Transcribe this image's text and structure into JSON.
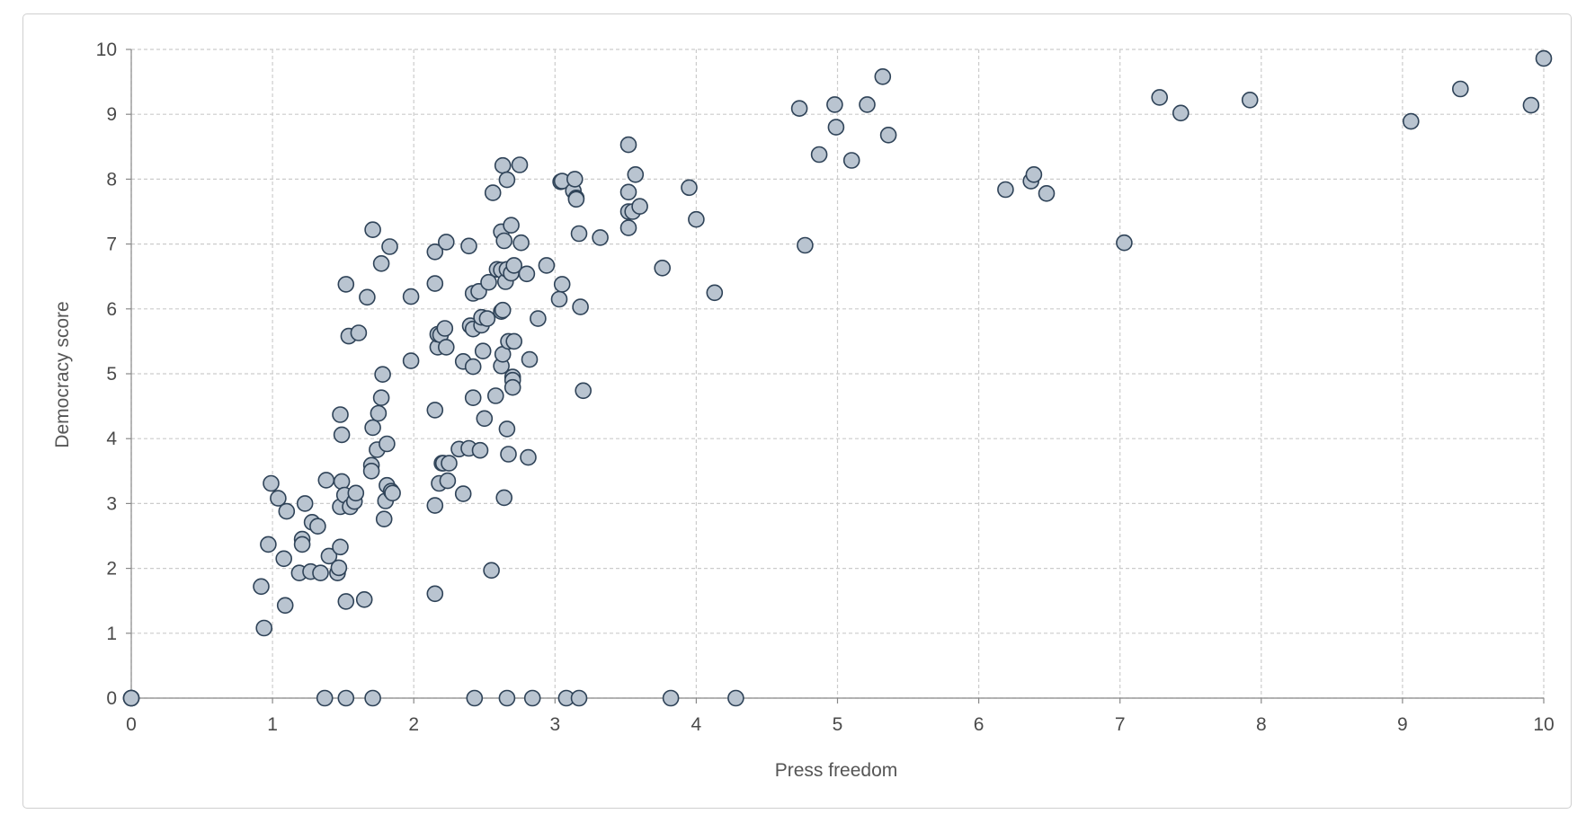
{
  "chart_data": {
    "type": "scatter",
    "title": "",
    "xlabel": "Press freedom",
    "ylabel": "Democracy score",
    "xlim": [
      0,
      10
    ],
    "ylim": [
      0,
      10
    ],
    "x_ticks": [
      "0",
      "1",
      "2",
      "3",
      "4",
      "5",
      "6",
      "7",
      "8",
      "9",
      "10"
    ],
    "y_ticks": [
      "0",
      "1",
      "2",
      "3",
      "4",
      "5",
      "6",
      "7",
      "8",
      "9",
      "10"
    ],
    "grid": true,
    "legend": "none",
    "point_fill": "#b9c4d0",
    "point_stroke": "#2f4358",
    "points": [
      [
        0,
        0
      ],
      [
        0,
        0
      ],
      [
        0,
        0
      ],
      [
        1.37,
        0
      ],
      [
        1.52,
        0
      ],
      [
        1.71,
        0
      ],
      [
        2.43,
        0
      ],
      [
        2.66,
        0
      ],
      [
        2.84,
        0
      ],
      [
        3.08,
        0
      ],
      [
        3.17,
        0
      ],
      [
        3.82,
        0
      ],
      [
        4.28,
        0
      ],
      [
        0.94,
        1.08
      ],
      [
        1.09,
        1.43
      ],
      [
        0.92,
        1.72
      ],
      [
        1.08,
        2.15
      ],
      [
        0.97,
        2.37
      ],
      [
        1.04,
        3.08
      ],
      [
        0.99,
        3.31
      ],
      [
        1.1,
        2.88
      ],
      [
        1.23,
        3.0
      ],
      [
        1.21,
        2.45
      ],
      [
        1.21,
        2.37
      ],
      [
        1.28,
        2.71
      ],
      [
        1.32,
        2.65
      ],
      [
        1.19,
        1.93
      ],
      [
        1.27,
        1.95
      ],
      [
        1.34,
        1.93
      ],
      [
        1.4,
        2.19
      ],
      [
        1.46,
        1.93
      ],
      [
        1.47,
        2.01
      ],
      [
        1.48,
        2.33
      ],
      [
        1.38,
        3.36
      ],
      [
        1.48,
        2.95
      ],
      [
        1.49,
        3.34
      ],
      [
        1.51,
        3.13
      ],
      [
        1.55,
        2.95
      ],
      [
        1.58,
        3.03
      ],
      [
        1.59,
        3.16
      ],
      [
        1.52,
        1.49
      ],
      [
        1.65,
        1.52
      ],
      [
        1.48,
        4.37
      ],
      [
        1.49,
        4.06
      ],
      [
        1.52,
        6.38
      ],
      [
        1.54,
        5.58
      ],
      [
        1.61,
        5.63
      ],
      [
        1.67,
        6.18
      ],
      [
        1.71,
        7.22
      ],
      [
        1.7,
        3.59
      ],
      [
        1.7,
        3.5
      ],
      [
        1.71,
        4.17
      ],
      [
        1.74,
        3.83
      ],
      [
        1.75,
        4.39
      ],
      [
        1.77,
        4.63
      ],
      [
        1.78,
        4.99
      ],
      [
        1.77,
        6.7
      ],
      [
        1.79,
        2.76
      ],
      [
        1.8,
        3.04
      ],
      [
        1.81,
        3.28
      ],
      [
        1.81,
        3.92
      ],
      [
        1.84,
        3.19
      ],
      [
        1.85,
        3.16
      ],
      [
        1.83,
        6.96
      ],
      [
        1.98,
        6.19
      ],
      [
        1.98,
        5.2
      ],
      [
        2.15,
        1.61
      ],
      [
        2.15,
        2.97
      ],
      [
        2.18,
        3.31
      ],
      [
        2.2,
        3.62
      ],
      [
        2.21,
        3.62
      ],
      [
        2.24,
        3.35
      ],
      [
        2.25,
        3.62
      ],
      [
        2.15,
        4.44
      ],
      [
        2.17,
        5.41
      ],
      [
        2.17,
        5.61
      ],
      [
        2.19,
        5.6
      ],
      [
        2.22,
        5.7
      ],
      [
        2.23,
        5.41
      ],
      [
        2.15,
        6.39
      ],
      [
        2.15,
        6.88
      ],
      [
        2.23,
        7.03
      ],
      [
        2.32,
        3.84
      ],
      [
        2.35,
        3.15
      ],
      [
        2.35,
        5.19
      ],
      [
        2.39,
        3.85
      ],
      [
        2.42,
        4.63
      ],
      [
        2.42,
        5.11
      ],
      [
        2.4,
        5.74
      ],
      [
        2.42,
        5.69
      ],
      [
        2.42,
        6.24
      ],
      [
        2.39,
        6.97
      ],
      [
        2.46,
        6.27
      ],
      [
        2.47,
        3.82
      ],
      [
        2.48,
        5.75
      ],
      [
        2.48,
        5.87
      ],
      [
        2.49,
        5.35
      ],
      [
        2.5,
        4.31
      ],
      [
        2.52,
        5.85
      ],
      [
        2.53,
        6.41
      ],
      [
        2.55,
        1.97
      ],
      [
        2.56,
        7.79
      ],
      [
        2.58,
        4.66
      ],
      [
        2.59,
        6.61
      ],
      [
        2.62,
        5.12
      ],
      [
        2.63,
        5.3
      ],
      [
        2.62,
        5.96
      ],
      [
        2.63,
        5.98
      ],
      [
        2.62,
        6.6
      ],
      [
        2.62,
        7.19
      ],
      [
        2.64,
        7.05
      ],
      [
        2.63,
        8.21
      ],
      [
        2.65,
        6.42
      ],
      [
        2.66,
        6.61
      ],
      [
        2.64,
        3.09
      ],
      [
        2.66,
        4.15
      ],
      [
        2.67,
        3.76
      ],
      [
        2.67,
        5.5
      ],
      [
        2.66,
        7.99
      ],
      [
        2.69,
        6.55
      ],
      [
        2.69,
        7.29
      ],
      [
        2.7,
        4.95
      ],
      [
        2.7,
        4.9
      ],
      [
        2.7,
        4.79
      ],
      [
        2.71,
        5.5
      ],
      [
        2.71,
        6.67
      ],
      [
        2.75,
        8.22
      ],
      [
        2.76,
        7.02
      ],
      [
        2.8,
        6.54
      ],
      [
        2.81,
        3.71
      ],
      [
        2.82,
        5.22
      ],
      [
        2.88,
        5.85
      ],
      [
        2.94,
        6.67
      ],
      [
        3.03,
        6.15
      ],
      [
        3.05,
        6.38
      ],
      [
        3.04,
        7.96
      ],
      [
        3.05,
        7.97
      ],
      [
        3.13,
        7.82
      ],
      [
        3.14,
        8.0
      ],
      [
        3.15,
        7.71
      ],
      [
        3.15,
        7.69
      ],
      [
        3.17,
        7.16
      ],
      [
        3.18,
        6.03
      ],
      [
        3.2,
        4.74
      ],
      [
        3.32,
        7.1
      ],
      [
        3.52,
        8.53
      ],
      [
        3.52,
        7.8
      ],
      [
        3.52,
        7.5
      ],
      [
        3.55,
        7.5
      ],
      [
        3.52,
        7.25
      ],
      [
        3.57,
        8.07
      ],
      [
        3.6,
        7.58
      ],
      [
        3.76,
        6.63
      ],
      [
        3.95,
        7.87
      ],
      [
        4.0,
        7.38
      ],
      [
        4.13,
        6.25
      ],
      [
        4.73,
        9.09
      ],
      [
        4.77,
        6.98
      ],
      [
        4.87,
        8.38
      ],
      [
        4.98,
        9.15
      ],
      [
        4.99,
        8.8
      ],
      [
        5.1,
        8.29
      ],
      [
        5.21,
        9.15
      ],
      [
        5.32,
        9.58
      ],
      [
        5.36,
        8.68
      ],
      [
        6.19,
        7.84
      ],
      [
        6.37,
        7.97
      ],
      [
        6.39,
        8.07
      ],
      [
        6.48,
        7.78
      ],
      [
        7.03,
        7.02
      ],
      [
        7.28,
        9.26
      ],
      [
        7.43,
        9.02
      ],
      [
        7.92,
        9.22
      ],
      [
        9.06,
        8.89
      ],
      [
        9.41,
        9.39
      ],
      [
        9.91,
        9.14
      ],
      [
        10.0,
        9.86
      ]
    ]
  }
}
